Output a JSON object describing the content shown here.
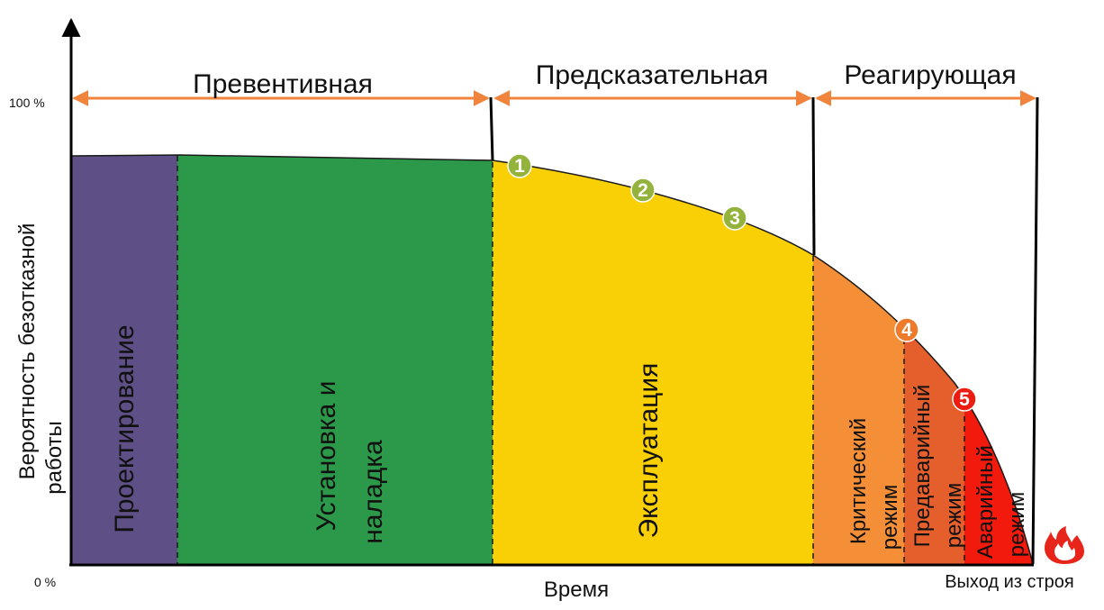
{
  "phases": {
    "preventive": "Превентивная",
    "predictive": "Предсказательная",
    "reactive": "Реагирующая"
  },
  "stages": {
    "design": "Проектирование",
    "setup_line1": "Установка и",
    "setup_line2": "наладка",
    "operation": "Эксплуатация",
    "critical_line1": "Критический",
    "critical_line2": "режим",
    "prefailure_line1": "Предаварийный",
    "prefailure_line2": "режим",
    "emergency_line1": "Аварийный",
    "emergency_line2": "режим"
  },
  "axis": {
    "y_title_line1": "Вероятность безотказной",
    "y_title_line2": "работы",
    "y_max": "100 %",
    "y_min": "0 %",
    "x_title": "Время",
    "x_end": "Выход из строя"
  },
  "markers": [
    "1",
    "2",
    "3",
    "4",
    "5"
  ],
  "colors": {
    "design": "#5e5086",
    "setup": "#2c994a",
    "operation": "#f9cf05",
    "critical": "#f48f37",
    "prefailure": "#e45f2c",
    "emergency": "#f21a0c",
    "phase_arrow": "#f0843c",
    "marker_green": "#93b33c",
    "marker_orange": "#ee7a2c",
    "marker_red": "#ec1c10"
  },
  "icons": {
    "failure": "fire-icon"
  }
}
